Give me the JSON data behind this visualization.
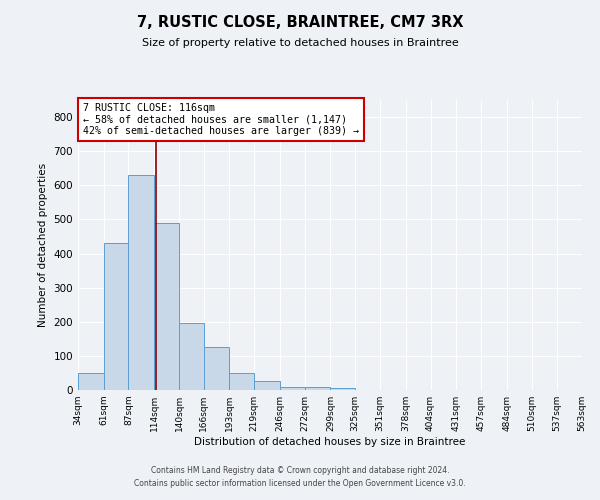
{
  "title": "7, RUSTIC CLOSE, BRAINTREE, CM7 3RX",
  "subtitle": "Size of property relative to detached houses in Braintree",
  "xlabel": "Distribution of detached houses by size in Braintree",
  "ylabel": "Number of detached properties",
  "bar_color": "#c8d8e8",
  "bar_edge_color": "#5a9fd4",
  "bins": [
    34,
    61,
    87,
    114,
    140,
    166,
    193,
    219,
    246,
    272,
    299,
    325,
    351,
    378,
    404,
    431,
    457,
    484,
    510,
    537,
    563
  ],
  "values": [
    50,
    430,
    630,
    490,
    195,
    125,
    50,
    25,
    10,
    10,
    5,
    0,
    0,
    0,
    0,
    0,
    0,
    0,
    0,
    0
  ],
  "property_size": 116,
  "vline_color": "#8b0000",
  "annotation_text": "7 RUSTIC CLOSE: 116sqm\n← 58% of detached houses are smaller (1,147)\n42% of semi-detached houses are larger (839) →",
  "annotation_box_color": "#ffffff",
  "annotation_box_edge": "#cc0000",
  "ylim": [
    0,
    850
  ],
  "yticks": [
    0,
    100,
    200,
    300,
    400,
    500,
    600,
    700,
    800
  ],
  "footer_line1": "Contains HM Land Registry data © Crown copyright and database right 2024.",
  "footer_line2": "Contains public sector information licensed under the Open Government Licence v3.0.",
  "background_color": "#eef2f7",
  "grid_color": "#ffffff"
}
